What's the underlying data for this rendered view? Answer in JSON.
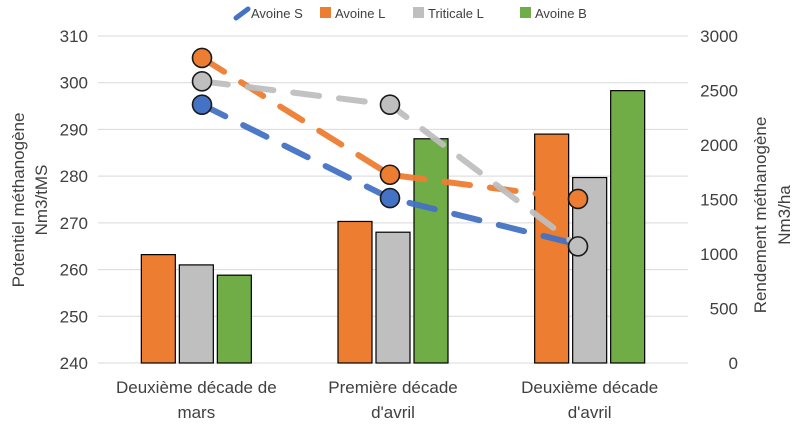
{
  "chart_data": {
    "type": "bar+line",
    "categories": [
      [
        "Deuxième décade de",
        "mars"
      ],
      [
        "Première décade",
        "d'avril"
      ],
      [
        "Deuxième décade",
        "d'avril"
      ]
    ],
    "left_axis": {
      "label": [
        "Potentiel méthanogène",
        "Nm3/tMS"
      ],
      "ylim": [
        240,
        310
      ],
      "ticks": [
        240,
        250,
        260,
        270,
        280,
        290,
        300,
        310
      ]
    },
    "right_axis": {
      "label": [
        "Rendement méthanogène",
        "Nm3/ha"
      ],
      "ylim": [
        0,
        3000
      ],
      "ticks": [
        0,
        500,
        1000,
        1500,
        2000,
        2500,
        3000
      ]
    },
    "bar_series": [
      {
        "name": "Avoine L",
        "color": "#ED7D31",
        "values": [
          263.2,
          270.3,
          289.0
        ]
      },
      {
        "name": "Triticale L",
        "color": "#BFBFBF",
        "values": [
          261.0,
          268.0,
          279.7
        ]
      },
      {
        "name": "Avoine B",
        "color": "#70AD47",
        "values": [
          258.8,
          288.0,
          298.3
        ]
      }
    ],
    "line_series": [
      {
        "name": "Avoine S",
        "color": "#4472C4",
        "values": [
          295.3,
          275.3,
          null
        ]
      },
      {
        "name": "Avoine L",
        "color": "#ED7D31",
        "values": [
          305.3,
          280.3,
          1505
        ]
      },
      {
        "name": "Triticale L",
        "color": "#BFBFBF",
        "values": [
          300.3,
          295.3,
          1070
        ]
      }
    ],
    "legend": {
      "position": "top",
      "items": [
        {
          "name": "Avoine S",
          "color": "#4472C4",
          "marker": "dash"
        },
        {
          "name": "Avoine L",
          "color": "#ED7D31",
          "marker": "square"
        },
        {
          "name": "Triticale L",
          "color": "#BFBFBF",
          "marker": "square"
        },
        {
          "name": "Avoine B",
          "color": "#70AD47",
          "marker": "square"
        }
      ]
    },
    "grid": true
  }
}
